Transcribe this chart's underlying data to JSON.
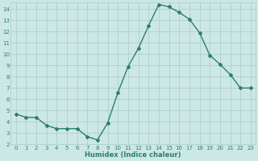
{
  "x": [
    0,
    1,
    2,
    3,
    4,
    5,
    6,
    7,
    8,
    9,
    10,
    11,
    12,
    13,
    14,
    15,
    16,
    17,
    18,
    19,
    20,
    21,
    22,
    23
  ],
  "y": [
    4.7,
    4.4,
    4.4,
    3.7,
    3.4,
    3.4,
    3.4,
    2.7,
    2.4,
    3.9,
    6.6,
    8.9,
    10.5,
    12.5,
    14.4,
    14.2,
    13.7,
    13.1,
    11.9,
    9.9,
    9.1,
    8.2,
    7.0,
    7.0
  ],
  "line_color": "#2e7d72",
  "bg_color": "#cce8e4",
  "grid_color": "#aecfcb",
  "tick_label_color": "#2e7d72",
  "xlabel": "Humidex (Indice chaleur)",
  "xlabel_color": "#2e7d72",
  "ylim": [
    2,
    14.6
  ],
  "yticks": [
    2,
    3,
    4,
    5,
    6,
    7,
    8,
    9,
    10,
    11,
    12,
    13,
    14
  ],
  "xticks": [
    0,
    1,
    2,
    3,
    4,
    5,
    6,
    7,
    8,
    9,
    10,
    11,
    12,
    13,
    14,
    15,
    16,
    17,
    18,
    19,
    20,
    21,
    22,
    23
  ],
  "marker": "D",
  "marker_size": 2.0,
  "line_width": 1.0,
  "tick_fontsize": 5.0,
  "xlabel_fontsize": 6.0
}
